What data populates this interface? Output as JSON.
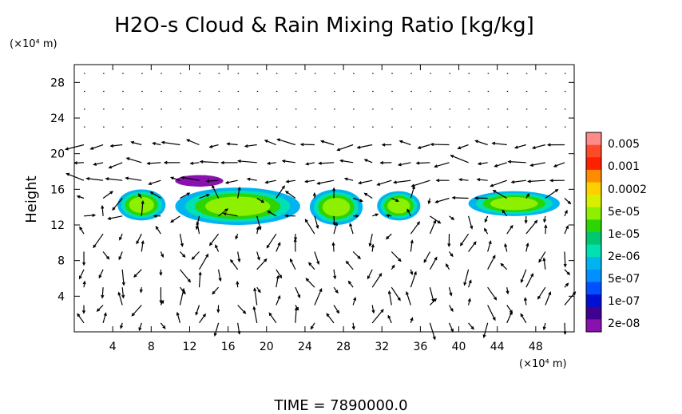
{
  "chart_data": {
    "type": "heatmap",
    "title": "H2O-s Cloud & Rain Mixing Ratio [kg/kg]",
    "ylabel": "Height",
    "x_unit": "(×10⁴ m)",
    "y_unit": "(×10⁴ m)",
    "xlim": [
      0,
      52
    ],
    "ylim": [
      0,
      30
    ],
    "x_ticks": [
      4,
      8,
      12,
      16,
      20,
      24,
      28,
      32,
      36,
      40,
      44,
      48
    ],
    "y_ticks": [
      4,
      8,
      12,
      16,
      20,
      24,
      28
    ],
    "grid": false,
    "vector_overlay": true,
    "colorbar": {
      "placement": "right",
      "labels": [
        "0.005",
        "0.001",
        "0.0002",
        "5e-05",
        "1e-05",
        "2e-06",
        "5e-07",
        "1e-07",
        "2e-08"
      ],
      "colors": [
        "#ff8a8a",
        "#ff4a2a",
        "#ff2000",
        "#ff8c00",
        "#ffd000",
        "#d8f000",
        "#8cf000",
        "#2cd400",
        "#00c870",
        "#00e0b0",
        "#00b4f0",
        "#0090ff",
        "#0050ff",
        "#0010d0",
        "#400090",
        "#8a10b0"
      ]
    },
    "regions": [
      {
        "x": [
          4.5,
          9.5
        ],
        "y": [
          12.5,
          16.0
        ],
        "value": "1e-05"
      },
      {
        "x": [
          10.5,
          23.5
        ],
        "y": [
          12.0,
          16.2
        ],
        "value": "1e-05"
      },
      {
        "x": [
          24.5,
          30.0
        ],
        "y": [
          12.0,
          16.0
        ],
        "value": "1e-05"
      },
      {
        "x": [
          31.5,
          36.0
        ],
        "y": [
          12.5,
          15.8
        ],
        "value": "1e-05"
      },
      {
        "x": [
          41.0,
          50.5
        ],
        "y": [
          13.0,
          15.8
        ],
        "value": "1e-05"
      },
      {
        "x": [
          10.5,
          15.5
        ],
        "y": [
          16.3,
          17.6
        ],
        "value": "2e-08"
      }
    ],
    "time_label": "TIME = 7890000.0"
  }
}
